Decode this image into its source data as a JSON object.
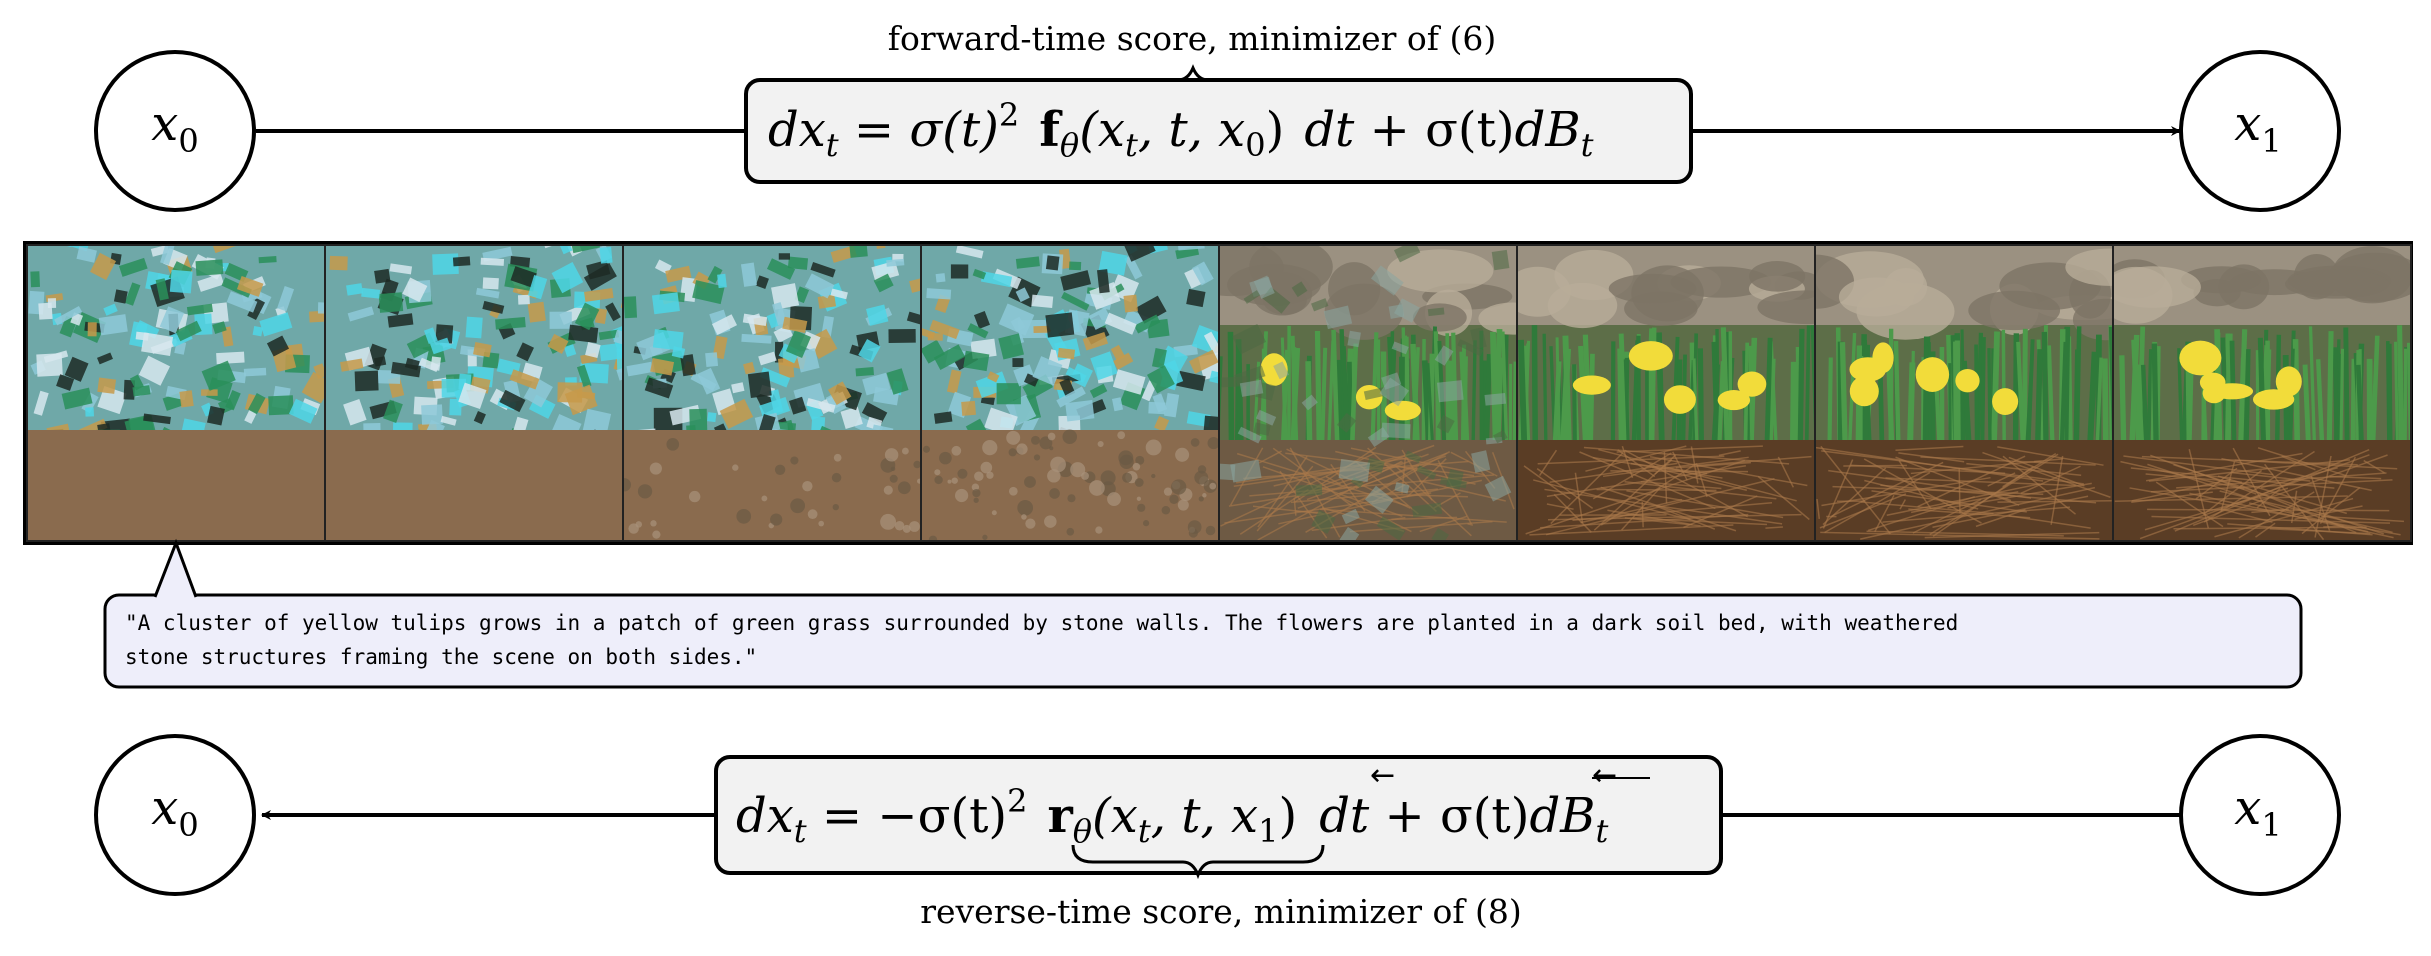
{
  "forward": {
    "caption": "forward-time score, minimizer of (6)",
    "equation": {
      "lhs": "dx",
      "lhs_sub": "t",
      "eq": " = ",
      "sigma_sq": "σ(t)",
      "sq": "2",
      "score_fn": "f",
      "theta": "θ",
      "args": "(x",
      "args_sub_t": "t",
      "args_mid": ", t, x",
      "args_sub_0": "0",
      "args_close": ")",
      "dt": "dt",
      "plus": " + σ(t)",
      "dB": "dB",
      "dB_sub": "t"
    },
    "start_node": {
      "label": "x",
      "sub": "0"
    },
    "end_node": {
      "label": "x",
      "sub": "1"
    }
  },
  "reverse": {
    "caption": "reverse-time score, minimizer of (8)",
    "equation": {
      "lhs": "dx",
      "lhs_sub": "t",
      "eq": " = −σ(t)",
      "sq": "2",
      "score_fn": "r",
      "theta": "θ",
      "args": "(x",
      "args_sub_t": "t",
      "args_mid": ", t, x",
      "args_sub_1": "1",
      "args_close": ")",
      "dt": "dt",
      "plus": " + σ(t)",
      "dB": "dB",
      "dB_sub": "t",
      "arrow_glyph": "←"
    },
    "start_node": {
      "label": "x",
      "sub": "0"
    },
    "end_node": {
      "label": "x",
      "sub": "1"
    }
  },
  "prompt_caption": "\"A cluster of yellow tulips grows in a patch of green grass surrounded by stone walls. The flowers are planted in a dark soil bed, with weathered stone structures framing the scene on both sides.\"",
  "prompt_lines": [
    "\"A cluster of yellow tulips grows in a patch of green grass surrounded by stone walls. The flowers are planted in a dark soil bed, with weathered",
    "stone structures framing the scene on both sides.\""
  ],
  "frames": [
    {
      "stage": "noise",
      "denoise": 0.0
    },
    {
      "stage": "noise",
      "denoise": 0.0
    },
    {
      "stage": "noise",
      "denoise": 0.15
    },
    {
      "stage": "noise",
      "denoise": 0.35
    },
    {
      "stage": "scene",
      "denoise": 0.55
    },
    {
      "stage": "scene",
      "denoise": 0.85
    },
    {
      "stage": "scene",
      "denoise": 1.0
    },
    {
      "stage": "scene",
      "denoise": 1.0
    }
  ],
  "colors": {
    "line": "#000000",
    "box_fill": "#f2f2f2",
    "caption_fill": "#eeeefa",
    "cyan": "#4fd6e6",
    "green": "#2f7a3a",
    "soil": "#8a6b4e",
    "dark_soil": "#5a3d25",
    "tulip": "#f2dc3a",
    "stone": "#9b9181"
  }
}
